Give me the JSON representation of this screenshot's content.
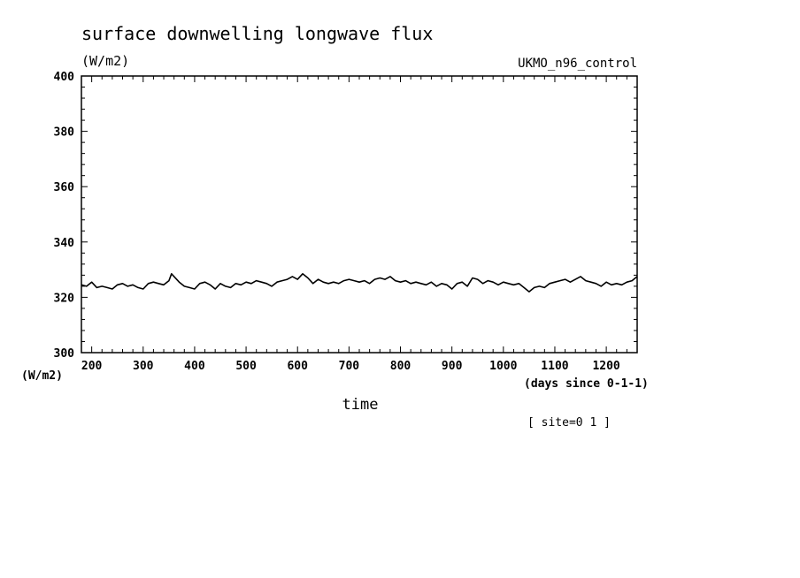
{
  "chart_data": {
    "type": "line",
    "title": "surface downwelling longwave flux",
    "units_label": "(W/m2)",
    "dataset_label": "UKMO_n96_control",
    "ylabel": "(W/m2)",
    "xlabel": "time",
    "x_units": "(days since 0-1-1)",
    "footnote": "[ site=0 1 ]",
    "xlim": [
      180,
      1260
    ],
    "ylim": [
      300,
      400
    ],
    "x_ticks": [
      200,
      300,
      400,
      500,
      600,
      700,
      800,
      900,
      1000,
      1100,
      1200
    ],
    "y_ticks": [
      300,
      320,
      340,
      360,
      380,
      400
    ],
    "x_tick_labels": [
      "200",
      "300",
      "400",
      "500",
      "600",
      "700",
      "800",
      "900",
      "1000",
      "1100",
      "1200"
    ],
    "y_tick_labels": [
      "300",
      "320",
      "340",
      "360",
      "380",
      "400"
    ],
    "grid": false,
    "series": [
      {
        "color": "#000000",
        "x": [
          180,
          190,
          200,
          210,
          220,
          230,
          240,
          250,
          260,
          270,
          280,
          290,
          300,
          310,
          320,
          330,
          340,
          350,
          355,
          360,
          370,
          380,
          390,
          400,
          410,
          420,
          430,
          440,
          450,
          460,
          470,
          480,
          490,
          500,
          510,
          520,
          530,
          540,
          550,
          560,
          570,
          580,
          590,
          600,
          610,
          620,
          630,
          640,
          650,
          660,
          670,
          680,
          690,
          700,
          710,
          720,
          730,
          740,
          750,
          760,
          770,
          780,
          790,
          800,
          810,
          820,
          830,
          840,
          850,
          860,
          870,
          880,
          890,
          900,
          910,
          920,
          930,
          940,
          950,
          960,
          970,
          980,
          990,
          1000,
          1010,
          1020,
          1030,
          1040,
          1050,
          1060,
          1070,
          1080,
          1090,
          1100,
          1110,
          1120,
          1130,
          1140,
          1150,
          1160,
          1170,
          1180,
          1190,
          1200,
          1210,
          1220,
          1230,
          1240,
          1250,
          1260
        ],
        "y": [
          324.5,
          324.0,
          325.5,
          323.5,
          324.0,
          323.5,
          323.0,
          324.5,
          325.0,
          324.0,
          324.5,
          323.5,
          323.0,
          325.0,
          325.5,
          325.0,
          324.5,
          326.0,
          328.5,
          327.5,
          325.5,
          324.0,
          323.5,
          323.0,
          325.0,
          325.5,
          324.5,
          323.0,
          325.0,
          324.0,
          323.5,
          325.0,
          324.5,
          325.5,
          325.0,
          326.0,
          325.5,
          325.0,
          324.0,
          325.5,
          326.0,
          326.5,
          327.5,
          326.5,
          328.5,
          327.0,
          325.0,
          326.5,
          325.5,
          325.0,
          325.5,
          325.0,
          326.0,
          326.5,
          326.0,
          325.5,
          326.0,
          325.0,
          326.5,
          327.0,
          326.5,
          327.5,
          326.0,
          325.5,
          326.0,
          325.0,
          325.5,
          325.0,
          324.5,
          325.5,
          324.0,
          325.0,
          324.5,
          323.0,
          325.0,
          325.5,
          324.0,
          327.0,
          326.5,
          325.0,
          326.0,
          325.5,
          324.5,
          325.5,
          325.0,
          324.5,
          325.0,
          323.5,
          322.0,
          323.5,
          324.0,
          323.5,
          325.0,
          325.5,
          326.0,
          326.5,
          325.5,
          326.5,
          327.5,
          326.0,
          325.5,
          325.0,
          324.0,
          325.5,
          324.5,
          325.0,
          324.5,
          325.5,
          326.0,
          327.5
        ]
      }
    ]
  }
}
